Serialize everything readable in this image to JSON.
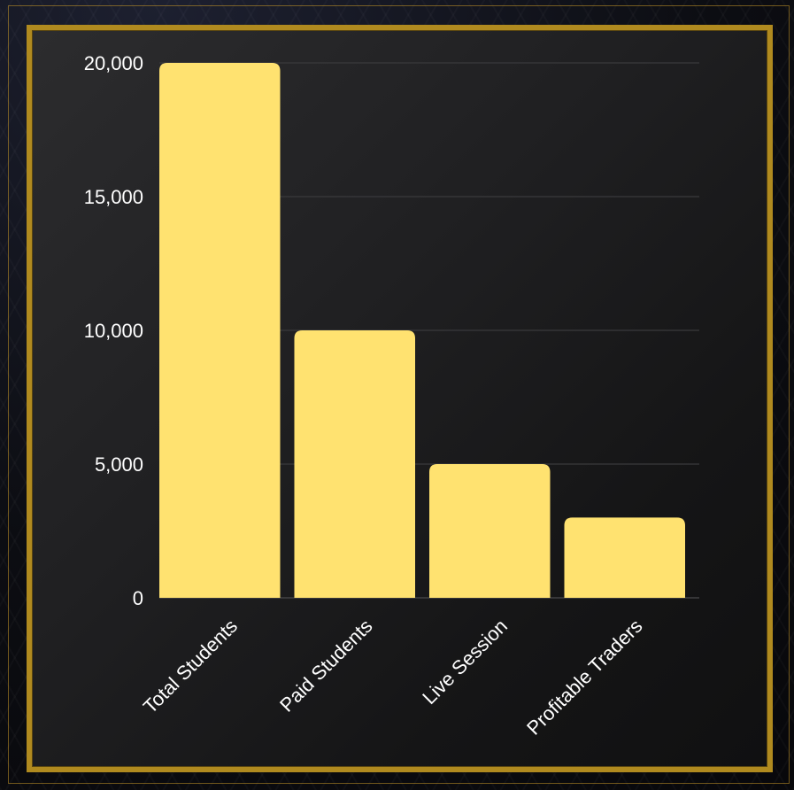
{
  "colors": {
    "bar": "#ffe270",
    "frame": "#b08a1f",
    "panel": "#1c1c1d",
    "text": "#ffffff"
  },
  "chart_data": {
    "type": "bar",
    "categories": [
      "Total Students",
      "Paid Students",
      "Live Session",
      "Profitable Traders"
    ],
    "values": [
      20000,
      10000,
      5000,
      3000
    ],
    "yticks": [
      0,
      5000,
      10000,
      15000,
      20000
    ],
    "ytick_labels": [
      "0",
      "5,000",
      "10,000",
      "15,000",
      "20,000"
    ],
    "ylim": [
      0,
      20000
    ],
    "grid": true,
    "legend": "none"
  }
}
